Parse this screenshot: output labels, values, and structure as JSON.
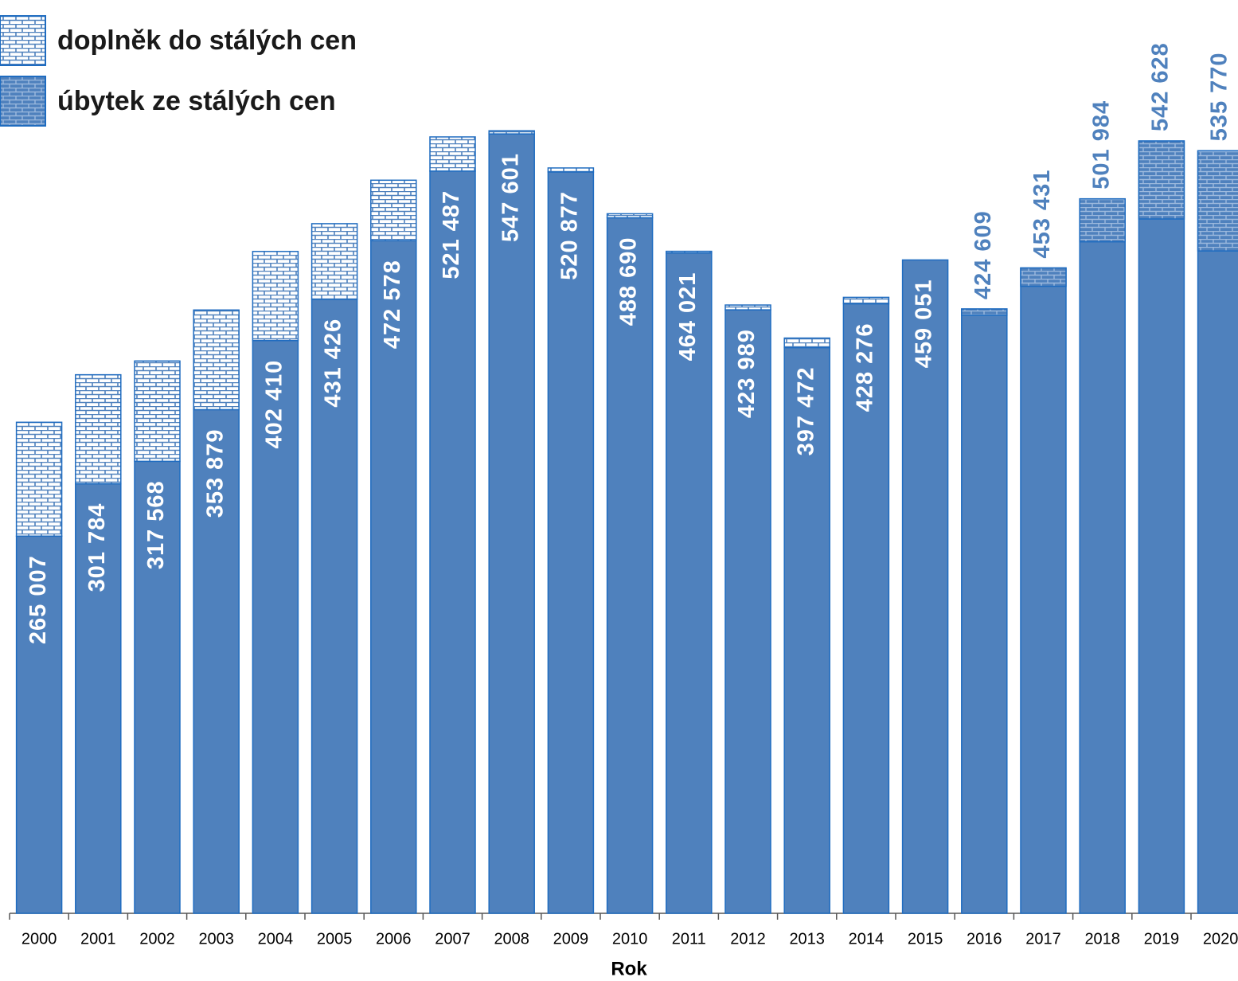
{
  "chart_data": {
    "type": "bar",
    "x_label": "Rok",
    "categories": [
      "2000",
      "2001",
      "2002",
      "2003",
      "2004",
      "2005",
      "2006",
      "2007",
      "2008",
      "2009",
      "2010",
      "2011",
      "2012",
      "2013",
      "2014",
      "2015",
      "2016",
      "2017",
      "2018",
      "2019",
      "2020"
    ],
    "values": [
      265007,
      301784,
      317568,
      353879,
      402410,
      431426,
      472578,
      521487,
      547601,
      520877,
      488690,
      464021,
      423989,
      397472,
      428276,
      459051,
      424609,
      453431,
      501984,
      542628,
      535770
    ],
    "value_labels": [
      "265 007",
      "301 784",
      "317 568",
      "353 879",
      "402 410",
      "431 426",
      "472 578",
      "521 487",
      "547 601",
      "520 877",
      "488 690",
      "464 021",
      "423 989",
      "397 472",
      "428 276",
      "459 051",
      "424 609",
      "453 431",
      "501 984",
      "542 628",
      "535 770"
    ],
    "color": "#4f81bd",
    "series": [
      {
        "name": "doplněk do stálých cen",
        "color": "#ffffff",
        "values": [
          80000,
          76600,
          70500,
          70000,
          62600,
          53100,
          42500,
          24000,
          2200,
          2800,
          2800,
          1100,
          3400,
          6700,
          4500,
          0,
          0,
          0,
          0,
          0,
          0
        ]
      },
      {
        "name": "úbytek ze stálých cen",
        "color": "#4f81bd",
        "values": [
          0,
          0,
          0,
          0,
          0,
          0,
          0,
          0,
          0,
          0,
          0,
          0,
          0,
          0,
          0,
          0,
          4500,
          12900,
          30200,
          54800,
          70400
        ]
      }
    ],
    "ylim": [
      0,
      640000
    ],
    "legend": "top-left"
  }
}
